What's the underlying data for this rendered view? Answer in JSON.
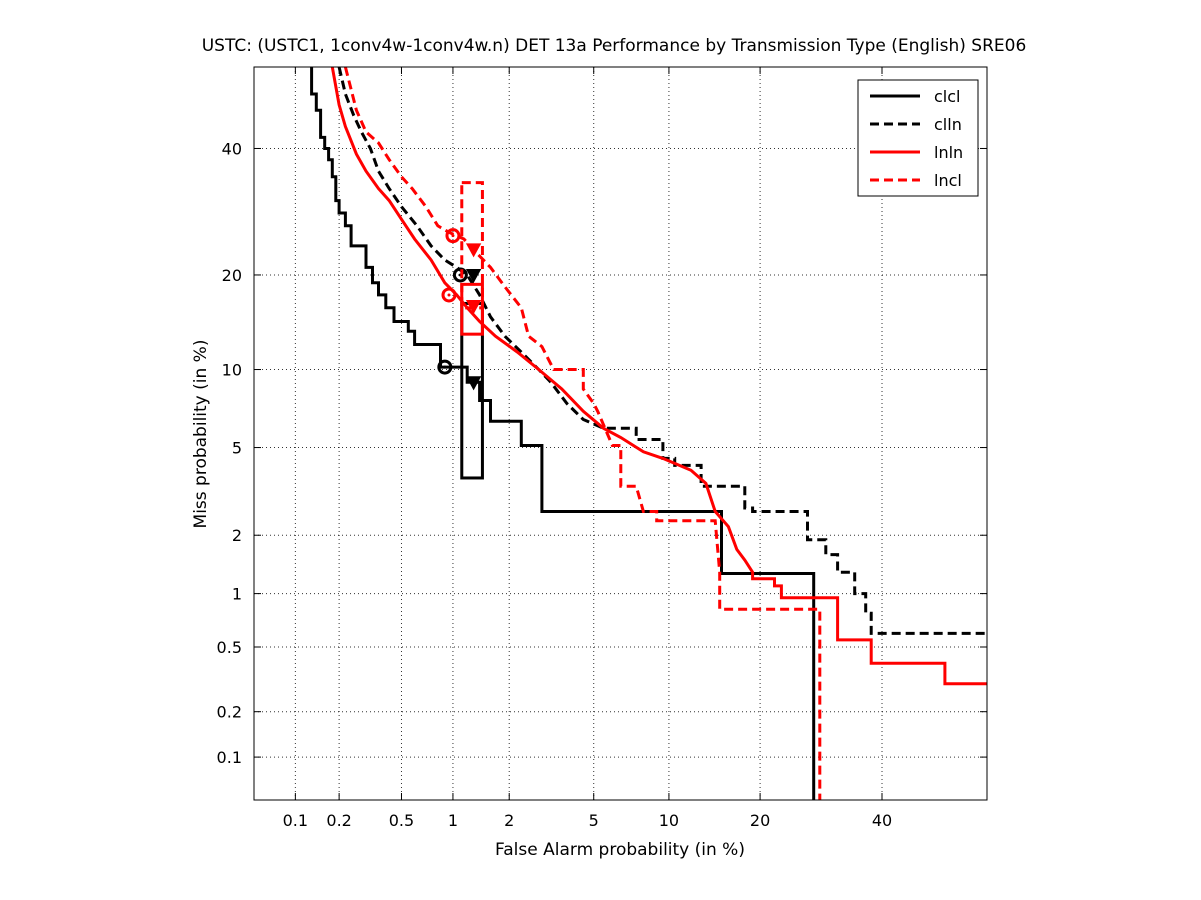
{
  "chart_data": {
    "type": "line",
    "title": "USTC: (USTC1, 1conv4w-1conv4w.n) DET 13a Performance by Transmission Type (English) SRE06",
    "xlabel": "False Alarm probability (in %)",
    "ylabel": "Miss probability (in %)",
    "scale": "normal-deviate (probit) on both axes",
    "xlim": [
      0.05,
      60
    ],
    "ylim": [
      0.05,
      55
    ],
    "x_ticks": [
      0.1,
      0.2,
      0.5,
      1,
      2,
      5,
      10,
      20,
      40
    ],
    "x_tick_labels": [
      "0.1",
      "0.2",
      "0.5",
      "1",
      "2",
      "5",
      "10",
      "20",
      "40"
    ],
    "y_ticks": [
      0.1,
      0.2,
      0.5,
      1,
      2,
      5,
      10,
      20,
      40
    ],
    "y_tick_labels": [
      "0.1",
      "0.2",
      "0.5",
      "1",
      "2",
      "5",
      "10",
      "20",
      "40"
    ],
    "grid": true,
    "legend_position": "top-right",
    "series": [
      {
        "name": "clcl",
        "color": "#000000",
        "dashed": false,
        "points": [
          [
            0.13,
            55
          ],
          [
            0.13,
            50
          ],
          [
            0.14,
            50
          ],
          [
            0.14,
            47
          ],
          [
            0.15,
            47
          ],
          [
            0.15,
            42
          ],
          [
            0.16,
            42
          ],
          [
            0.16,
            40
          ],
          [
            0.17,
            40
          ],
          [
            0.17,
            38
          ],
          [
            0.18,
            38
          ],
          [
            0.18,
            35
          ],
          [
            0.19,
            35
          ],
          [
            0.19,
            31
          ],
          [
            0.2,
            31
          ],
          [
            0.2,
            29
          ],
          [
            0.22,
            29
          ],
          [
            0.22,
            27
          ],
          [
            0.24,
            27
          ],
          [
            0.24,
            24
          ],
          [
            0.3,
            24
          ],
          [
            0.3,
            21
          ],
          [
            0.33,
            21
          ],
          [
            0.33,
            19
          ],
          [
            0.36,
            19
          ],
          [
            0.36,
            17.5
          ],
          [
            0.4,
            17.5
          ],
          [
            0.4,
            16
          ],
          [
            0.45,
            16
          ],
          [
            0.45,
            14.5
          ],
          [
            0.55,
            14.5
          ],
          [
            0.55,
            13.5
          ],
          [
            0.6,
            13.5
          ],
          [
            0.6,
            12.2
          ],
          [
            0.85,
            12.2
          ],
          [
            0.85,
            10.2
          ],
          [
            1.2,
            10.2
          ],
          [
            1.2,
            9.0
          ],
          [
            1.4,
            9.0
          ],
          [
            1.4,
            7.7
          ],
          [
            1.6,
            7.7
          ],
          [
            1.6,
            6.4
          ],
          [
            2.3,
            6.4
          ],
          [
            2.3,
            5.1
          ],
          [
            2.9,
            5.1
          ],
          [
            2.9,
            2.6
          ],
          [
            15.2,
            2.6
          ],
          [
            15.2,
            1.28
          ],
          [
            28,
            1.28
          ],
          [
            28,
            0.05
          ]
        ],
        "markers": {
          "act_dcf": [
            0.9,
            10.2
          ],
          "min_dcf": [
            1.3,
            9.0
          ],
          "ci_box": [
            1.12,
            1.45,
            3.7,
            16.5
          ]
        }
      },
      {
        "name": "clln",
        "color": "#000000",
        "dashed": true,
        "points": [
          [
            0.2,
            55
          ],
          [
            0.22,
            50
          ],
          [
            0.25,
            46
          ],
          [
            0.28,
            43
          ],
          [
            0.32,
            40
          ],
          [
            0.36,
            36
          ],
          [
            0.42,
            33
          ],
          [
            0.5,
            30
          ],
          [
            0.62,
            27
          ],
          [
            0.75,
            24
          ],
          [
            0.9,
            22
          ],
          [
            1.05,
            21
          ],
          [
            1.2,
            20
          ],
          [
            1.4,
            17.5
          ],
          [
            1.6,
            15
          ],
          [
            1.9,
            13
          ],
          [
            2.3,
            11.5
          ],
          [
            2.8,
            10
          ],
          [
            3.2,
            9
          ],
          [
            3.8,
            7.5
          ],
          [
            4.5,
            6.5
          ],
          [
            5.5,
            6.0
          ],
          [
            7.5,
            6.0
          ],
          [
            7.5,
            5.4
          ],
          [
            9.5,
            5.4
          ],
          [
            9.5,
            4.5
          ],
          [
            10.5,
            4.5
          ],
          [
            10.5,
            4.2
          ],
          [
            13,
            4.2
          ],
          [
            13,
            3.4
          ],
          [
            18,
            3.4
          ],
          [
            18,
            2.7
          ],
          [
            19,
            2.7
          ],
          [
            19,
            2.6
          ],
          [
            27,
            2.6
          ],
          [
            27,
            1.9
          ],
          [
            30,
            1.9
          ],
          [
            30,
            1.6
          ],
          [
            32,
            1.6
          ],
          [
            32,
            1.3
          ],
          [
            35,
            1.3
          ],
          [
            35,
            1.0
          ],
          [
            37,
            1.0
          ],
          [
            37,
            0.78
          ],
          [
            38,
            0.78
          ],
          [
            38,
            0.6
          ],
          [
            60,
            0.6
          ]
        ],
        "markers": {
          "act_dcf": [
            1.1,
            20.0
          ],
          "min_dcf": [
            1.3,
            20.0
          ]
        }
      },
      {
        "name": "lnln",
        "color": "#ff0000",
        "dashed": false,
        "points": [
          [
            0.18,
            55
          ],
          [
            0.2,
            48
          ],
          [
            0.22,
            44
          ],
          [
            0.26,
            39
          ],
          [
            0.3,
            36
          ],
          [
            0.36,
            33
          ],
          [
            0.42,
            31
          ],
          [
            0.5,
            28
          ],
          [
            0.6,
            25
          ],
          [
            0.75,
            22
          ],
          [
            0.9,
            19
          ],
          [
            1.05,
            17.5
          ],
          [
            1.2,
            16
          ],
          [
            1.4,
            14.5
          ],
          [
            1.7,
            13
          ],
          [
            2.2,
            11.5
          ],
          [
            2.8,
            10
          ],
          [
            3.6,
            8.5
          ],
          [
            4.5,
            7
          ],
          [
            5.5,
            6
          ],
          [
            6.5,
            5.5
          ],
          [
            8,
            4.8
          ],
          [
            9.5,
            4.5
          ],
          [
            12,
            4.0
          ],
          [
            13.5,
            3.5
          ],
          [
            14.5,
            2.6
          ],
          [
            16,
            2.2
          ],
          [
            17,
            1.7
          ],
          [
            18,
            1.5
          ],
          [
            19,
            1.3
          ],
          [
            19,
            1.2
          ],
          [
            22,
            1.2
          ],
          [
            22,
            1.1
          ],
          [
            23,
            1.1
          ],
          [
            23,
            0.95
          ],
          [
            32,
            0.95
          ],
          [
            32,
            0.55
          ],
          [
            38,
            0.55
          ],
          [
            38,
            0.4
          ],
          [
            52,
            0.4
          ],
          [
            52,
            0.3
          ],
          [
            60,
            0.3
          ]
        ],
        "markers": {
          "act_dcf": [
            0.95,
            17.5
          ],
          "min_dcf": [
            1.3,
            16.2
          ],
          "ci_box": [
            1.12,
            1.45,
            13.2,
            18.8
          ]
        }
      },
      {
        "name": "lncl",
        "color": "#ff0000",
        "dashed": true,
        "points": [
          [
            0.22,
            55
          ],
          [
            0.26,
            47
          ],
          [
            0.3,
            43
          ],
          [
            0.36,
            41
          ],
          [
            0.42,
            38
          ],
          [
            0.5,
            35
          ],
          [
            0.58,
            33
          ],
          [
            0.7,
            30
          ],
          [
            0.82,
            27
          ],
          [
            0.95,
            26
          ],
          [
            1.15,
            25
          ],
          [
            1.35,
            23
          ],
          [
            1.6,
            21
          ],
          [
            1.9,
            18.5
          ],
          [
            2.3,
            16
          ],
          [
            2.5,
            13
          ],
          [
            2.9,
            12
          ],
          [
            3.3,
            10
          ],
          [
            4.5,
            10
          ],
          [
            4.5,
            8.5
          ],
          [
            5.0,
            7.5
          ],
          [
            5.2,
            7.0
          ],
          [
            6.0,
            5.1
          ],
          [
            6.5,
            5.1
          ],
          [
            6.5,
            3.4
          ],
          [
            7.5,
            3.4
          ],
          [
            8.0,
            2.6
          ],
          [
            9,
            2.6
          ],
          [
            9,
            2.35
          ],
          [
            14.5,
            2.35
          ],
          [
            15,
            1.3
          ],
          [
            15,
            0.82
          ],
          [
            29,
            0.82
          ],
          [
            29,
            0.05
          ]
        ],
        "markers": {
          "act_dcf": [
            1.0,
            25.5
          ],
          "min_dcf": [
            1.3,
            23.5
          ],
          "ci_box": [
            1.12,
            1.45,
            16.0,
            34.0
          ]
        }
      }
    ]
  }
}
